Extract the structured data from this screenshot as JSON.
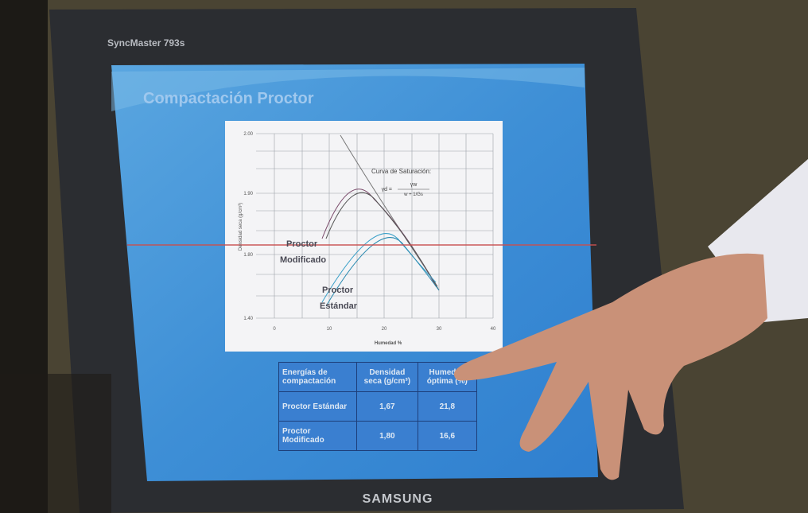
{
  "monitor": {
    "model": "SyncMaster 793s",
    "brand": "SAMSUNG"
  },
  "slide": {
    "title": "Compactación Proctor",
    "chart": {
      "y_tick_labels": [
        "2.00",
        "1.90",
        "1.80",
        "1.40"
      ],
      "x_tick_labels": [
        "0",
        "10",
        "20",
        "30",
        "40"
      ],
      "x_axis_label": "Humedad %",
      "y_axis_label": "Densidad seca (g/cm³)",
      "saturation_label": "Curva de Saturación:",
      "formula": {
        "lhs": "γd =",
        "numerator": "γw",
        "denominator": "w + 1/Gs"
      },
      "curve_labels": [
        [
          "Proctor",
          "Modificado"
        ],
        [
          "Proctor",
          "Estándar"
        ]
      ]
    },
    "table": {
      "header": [
        "Energías de compactación",
        "Densidad seca (g/cm³)",
        "Humedad óptima (%)"
      ],
      "rows": [
        [
          "Proctor Estándar",
          "1,67",
          "21,8"
        ],
        [
          "Proctor Modificado",
          "1,80",
          "16,6"
        ]
      ]
    }
  }
}
